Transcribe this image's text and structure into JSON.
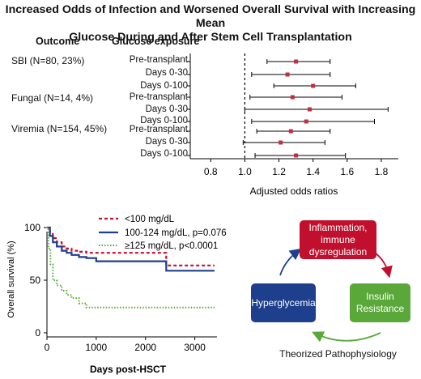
{
  "title_line1": "Increased Odds of Infection and Worsened Overall Survival with Increasing Mean",
  "title_line2": "Glucose During and After Stem Cell Transplantation",
  "forest": {
    "header_outcome": "Outcome",
    "header_exposure": "Glucose exposure",
    "outcomes": [
      {
        "label": "SBI (N=80, 23%)"
      },
      {
        "label": "Fungal (N=14, 4%)"
      },
      {
        "label": "Viremia (N=154, 45%)"
      }
    ],
    "exposure_labels": [
      "Pre-transplant",
      "Days 0-30",
      "Days 0-100",
      "Pre-transplant",
      "Days 0-30",
      "Days 0-100",
      "Pre-transplant",
      "Days 0-30",
      "Days 0-100"
    ],
    "xlabel": "Adjusted odds ratios",
    "ticks": [
      "0.8",
      "1.0",
      "1.2",
      "1.4",
      "1.6",
      "1.8"
    ]
  },
  "survival": {
    "ylabel": "Overall survival (%)",
    "xlabel": "Days post-HSCT",
    "xticks": [
      "0",
      "1000",
      "2000",
      "3000"
    ],
    "yticks": [
      "0",
      "50",
      "100"
    ],
    "legend": [
      "<100 mg/dL",
      "100-124 mg/dL, p=0.076",
      "≥125 mg/dL, p<0.0001"
    ]
  },
  "pathophys": {
    "inflammation": "Inflammation, immune dysregulation",
    "hyperglycemia": "Hyperglycemia",
    "insulin": "Insulin Resistance",
    "caption": "Theorized Pathophysiology"
  },
  "colors": {
    "red": "#c0102e",
    "blue": "#1e3f8c",
    "green": "#5aa83a",
    "marker": "#c03040"
  },
  "chart_data": [
    {
      "type": "scatter",
      "title": "",
      "xlabel": "Adjusted odds ratios",
      "xlim": [
        0.68,
        1.9
      ],
      "rows": [
        {
          "outcome": "SBI (N=80, 23%)",
          "exposure": "Pre-transplant",
          "or": 1.3,
          "lo": 1.13,
          "hi": 1.5
        },
        {
          "outcome": "SBI (N=80, 23%)",
          "exposure": "Days 0-30",
          "or": 1.25,
          "lo": 1.04,
          "hi": 1.5
        },
        {
          "outcome": "SBI (N=80, 23%)",
          "exposure": "Days 0-100",
          "or": 1.4,
          "lo": 1.17,
          "hi": 1.65
        },
        {
          "outcome": "Fungal (N=14, 4%)",
          "exposure": "Pre-transplant",
          "or": 1.28,
          "lo": 1.03,
          "hi": 1.57
        },
        {
          "outcome": "Fungal (N=14, 4%)",
          "exposure": "Days 0-30",
          "or": 1.38,
          "lo": 1.0,
          "hi": 1.84
        },
        {
          "outcome": "Fungal (N=14, 4%)",
          "exposure": "Days 0-100",
          "or": 1.36,
          "lo": 1.04,
          "hi": 1.76
        },
        {
          "outcome": "Viremia (N=154, 45%)",
          "exposure": "Pre-transplant",
          "or": 1.27,
          "lo": 1.07,
          "hi": 1.5
        },
        {
          "outcome": "Viremia (N=154, 45%)",
          "exposure": "Days 0-30",
          "or": 1.21,
          "lo": 0.99,
          "hi": 1.47
        },
        {
          "outcome": "Viremia (N=154, 45%)",
          "exposure": "Days 0-100",
          "or": 1.3,
          "lo": 1.06,
          "hi": 1.59
        }
      ]
    },
    {
      "type": "line",
      "title": "",
      "xlabel": "Days post-HSCT",
      "ylabel": "Overall survival (%)",
      "xlim": [
        0,
        3450
      ],
      "ylim": [
        0,
        100
      ],
      "series": [
        {
          "name": "<100 mg/dL",
          "style": "dashed",
          "x": [
            0,
            60,
            120,
            200,
            300,
            400,
            500,
            650,
            800,
            1000,
            1500,
            2000,
            2400,
            2420,
            3400
          ],
          "y": [
            100,
            95,
            90,
            86,
            82,
            80,
            78,
            77,
            76,
            76,
            76,
            76,
            76,
            64,
            64
          ]
        },
        {
          "name": "100-124 mg/dL, p=0.076",
          "style": "solid",
          "x": [
            0,
            60,
            120,
            200,
            300,
            400,
            500,
            650,
            800,
            1000,
            2000,
            2400,
            2420,
            3400
          ],
          "y": [
            100,
            92,
            86,
            82,
            78,
            76,
            74,
            72,
            71,
            68,
            68,
            68,
            59,
            59
          ]
        },
        {
          "name": "≥125 mg/dL, p<0.0001",
          "style": "dotted",
          "x": [
            0,
            30,
            70,
            120,
            200,
            300,
            400,
            500,
            650,
            800,
            1200,
            3400
          ],
          "y": [
            100,
            80,
            65,
            50,
            45,
            40,
            36,
            33,
            28,
            24,
            24,
            24
          ]
        }
      ]
    }
  ]
}
